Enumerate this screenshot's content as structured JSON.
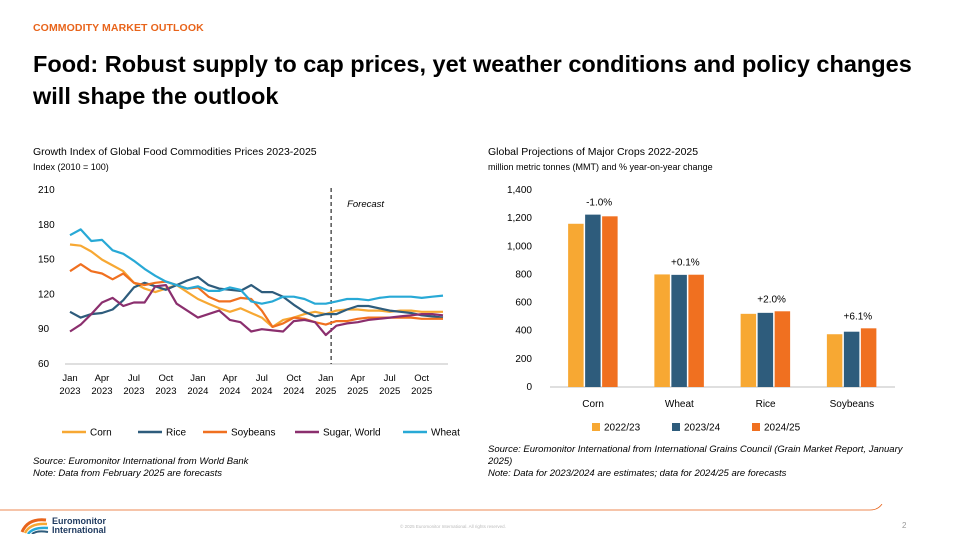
{
  "header": {
    "kicker": "COMMODITY MARKET OUTLOOK",
    "title": "Food: Robust supply to cap prices, yet weather conditions and policy changes will shape the outlook"
  },
  "left_chart": {
    "title": "Growth Index of Global Food Commodities Prices 2023-2025",
    "subtitle": "Index (2010 = 100)",
    "forecast_label": "Forecast",
    "source": "Source: Euromonitor International from World Bank",
    "note": "Note: Data from February 2025 are forecasts"
  },
  "right_chart": {
    "title": "Global Projections of Major Crops 2022-2025",
    "subtitle": "million metric tonnes (MMT) and % year-on-year change",
    "source": "Source: Euromonitor International from International Grains Council (Grain Market Report, January 2025)",
    "note": "Note: Data for 2023/2024 are estimates; data for 2024/25 are forecasts"
  },
  "footer": {
    "brand_line1": "Euromonitor",
    "brand_line2": "International",
    "copyright": "© 2025 Euromonitor International. All rights reserved.",
    "page": "2"
  },
  "colors": {
    "accent": "#E8641B",
    "corn": "#F7A833",
    "rice": "#2E5C7C",
    "soybeans": "#F07020",
    "sugar": "#8B2F6E",
    "wheat": "#28A9D6"
  },
  "chart_data": [
    {
      "type": "line",
      "title": "Growth Index of Global Food Commodities Prices 2023-2025",
      "ylabel": "Index (2010 = 100)",
      "ylim": [
        60,
        210
      ],
      "yticks": [
        60,
        90,
        120,
        150,
        180,
        210
      ],
      "x": [
        "Jan 2023",
        "Feb 2023",
        "Mar 2023",
        "Apr 2023",
        "May 2023",
        "Jun 2023",
        "Jul 2023",
        "Aug 2023",
        "Sep 2023",
        "Oct 2023",
        "Nov 2023",
        "Dec 2023",
        "Jan 2024",
        "Feb 2024",
        "Mar 2024",
        "Apr 2024",
        "May 2024",
        "Jun 2024",
        "Jul 2024",
        "Aug 2024",
        "Sep 2024",
        "Oct 2024",
        "Nov 2024",
        "Dec 2024",
        "Jan 2025",
        "Feb 2025",
        "Mar 2025",
        "Apr 2025",
        "May 2025",
        "Jun 2025",
        "Jul 2025",
        "Aug 2025",
        "Sep 2025",
        "Oct 2025",
        "Nov 2025",
        "Dec 2025"
      ],
      "xtick_labels": [
        [
          "Jan",
          "2023"
        ],
        [
          "Apr",
          "2023"
        ],
        [
          "Jul",
          "2023"
        ],
        [
          "Oct",
          "2023"
        ],
        [
          "Jan",
          "2024"
        ],
        [
          "Apr",
          "2024"
        ],
        [
          "Jul",
          "2024"
        ],
        [
          "Oct",
          "2024"
        ],
        [
          "Jan",
          "2025"
        ],
        [
          "Apr",
          "2025"
        ],
        [
          "Jul",
          "2025"
        ],
        [
          "Oct",
          "2025"
        ]
      ],
      "forecast_start": "Feb 2025",
      "series": [
        {
          "name": "Corn",
          "values": [
            163,
            162,
            157,
            150,
            145,
            140,
            130,
            125,
            122,
            125,
            128,
            122,
            116,
            112,
            108,
            105,
            108,
            104,
            100,
            92,
            98,
            100,
            103,
            105,
            103,
            106,
            107,
            107,
            106,
            106,
            105,
            106,
            106,
            105,
            105,
            105
          ]
        },
        {
          "name": "Rice",
          "values": [
            105,
            100,
            103,
            104,
            107,
            115,
            126,
            130,
            127,
            124,
            128,
            132,
            135,
            128,
            125,
            124,
            123,
            128,
            122,
            122,
            118,
            111,
            105,
            101,
            103,
            103,
            107,
            110,
            110,
            108,
            106,
            105,
            104,
            102,
            101,
            100
          ]
        },
        {
          "name": "Soybeans",
          "values": [
            140,
            146,
            140,
            138,
            133,
            138,
            130,
            128,
            130,
            131,
            128,
            125,
            126,
            118,
            114,
            114,
            117,
            116,
            106,
            92,
            95,
            100,
            99,
            96,
            94,
            97,
            97,
            99,
            100,
            100,
            100,
            100,
            100,
            99,
            99,
            99
          ]
        },
        {
          "name": "Sugar, World",
          "values": [
            88,
            94,
            103,
            113,
            117,
            110,
            113,
            113,
            127,
            128,
            112,
            106,
            100,
            103,
            106,
            98,
            96,
            88,
            90,
            89,
            88,
            97,
            98,
            96,
            85,
            93,
            95,
            96,
            98,
            99,
            100,
            101,
            102,
            103,
            103,
            102
          ]
        },
        {
          "name": "Wheat",
          "values": [
            171,
            176,
            166,
            167,
            158,
            155,
            149,
            142,
            136,
            131,
            128,
            125,
            127,
            123,
            123,
            126,
            124,
            114,
            112,
            114,
            118,
            118,
            116,
            112,
            112,
            114,
            116,
            116,
            115,
            117,
            118,
            118,
            118,
            117,
            118,
            119
          ]
        }
      ],
      "legend": "bottom"
    },
    {
      "type": "bar",
      "title": "Global Projections of Major Crops 2022-2025",
      "ylabel": "million metric tonnes (MMT) and % year-on-year change",
      "ylim": [
        0,
        1400
      ],
      "yticks": [
        0,
        200,
        400,
        600,
        800,
        1000,
        1200,
        1400
      ],
      "ytick_labels": [
        "0",
        "200",
        "400",
        "600",
        "800",
        "1,000",
        "1,200",
        "1,400"
      ],
      "categories": [
        "Corn",
        "Wheat",
        "Rice",
        "Soybeans"
      ],
      "series": [
        {
          "name": "2022/23",
          "values": [
            1160,
            800,
            520,
            375
          ]
        },
        {
          "name": "2023/24",
          "values": [
            1225,
            797,
            527,
            393
          ]
        },
        {
          "name": "2024/25",
          "values": [
            1213,
            798,
            538,
            417
          ]
        }
      ],
      "data_labels": [
        "-1.0%",
        "+0.1%",
        "+2.0%",
        "+6.1%"
      ],
      "legend": "bottom"
    }
  ]
}
